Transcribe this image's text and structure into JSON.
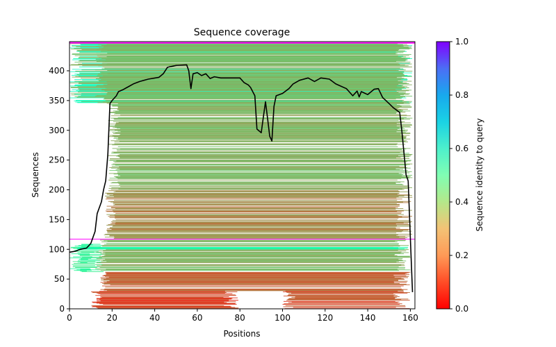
{
  "chart_data": {
    "type": "heatmap",
    "title": "Sequence coverage",
    "xlabel": "Positions",
    "ylabel": "Sequences",
    "xlim": [
      0,
      162
    ],
    "ylim": [
      0,
      448
    ],
    "xticks": [
      0,
      20,
      40,
      60,
      80,
      100,
      120,
      140,
      160
    ],
    "yticks": [
      0,
      50,
      100,
      150,
      200,
      250,
      300,
      350,
      400
    ],
    "colorbar": {
      "label": "Sequence identity to query",
      "range": [
        0.0,
        1.0
      ],
      "ticks": [
        "0.0",
        "0.2",
        "0.4",
        "0.6",
        "0.8",
        "1.0"
      ],
      "colormap": "rainbow_r"
    },
    "query_line": {
      "sequence_index": 117,
      "identity": 1.0,
      "start": 0,
      "end": 162
    },
    "top_line": {
      "sequence_index": 447,
      "identity": 1.0
    },
    "coverage_series": {
      "name": "coverage",
      "color": "#000000",
      "x": [
        0,
        3,
        5,
        8,
        10,
        12,
        13,
        15,
        16,
        17,
        18,
        19,
        20,
        22,
        23,
        25,
        27,
        30,
        33,
        37,
        42,
        44,
        46,
        50,
        55,
        56,
        57,
        58,
        60,
        62,
        64,
        66,
        68,
        71,
        80,
        82,
        84,
        85,
        87,
        88,
        90,
        91,
        92,
        93,
        94,
        95,
        96,
        97,
        100,
        103,
        105,
        108,
        112,
        115,
        118,
        122,
        125,
        130,
        133,
        135,
        136,
        137,
        140,
        143,
        145,
        147,
        150,
        152,
        155,
        156,
        158,
        159,
        160,
        161
      ],
      "y": [
        95,
        97,
        100,
        102,
        110,
        130,
        160,
        180,
        200,
        215,
        260,
        345,
        350,
        358,
        365,
        368,
        372,
        378,
        382,
        386,
        389,
        395,
        406,
        409,
        410,
        400,
        370,
        395,
        397,
        392,
        395,
        387,
        390,
        388,
        388,
        380,
        376,
        372,
        358,
        302,
        296,
        322,
        348,
        320,
        290,
        282,
        340,
        358,
        362,
        370,
        378,
        384,
        388,
        382,
        388,
        386,
        378,
        370,
        358,
        366,
        356,
        365,
        360,
        369,
        370,
        355,
        345,
        338,
        330,
        300,
        225,
        215,
        120,
        28
      ]
    },
    "alignment_bands": [
      {
        "rows": [
          0,
          30
        ],
        "start": 10,
        "end": 80,
        "identity": 0.08
      },
      {
        "rows": [
          0,
          30
        ],
        "start": 100,
        "end": 160,
        "identity": 0.1
      },
      {
        "rows": [
          30,
          62
        ],
        "start": 14,
        "end": 160,
        "identity": 0.12
      },
      {
        "rows": [
          62,
          116
        ],
        "start": 12,
        "end": 160,
        "identity": 0.25
      },
      {
        "rows": [
          62,
          110
        ],
        "start": 0,
        "end": 16,
        "identity": 0.4
      },
      {
        "rows": [
          100,
          104
        ],
        "start": 0,
        "end": 160,
        "identity": 0.45
      },
      {
        "rows": [
          118,
          200
        ],
        "start": 16,
        "end": 161,
        "identity": 0.18
      },
      {
        "rows": [
          200,
          345
        ],
        "start": 18,
        "end": 161,
        "identity": 0.25
      },
      {
        "rows": [
          345,
          447
        ],
        "start": 0,
        "end": 161,
        "identity": 0.55
      },
      {
        "rows": [
          345,
          447
        ],
        "start": 12,
        "end": 161,
        "identity": 0.26
      }
    ]
  }
}
